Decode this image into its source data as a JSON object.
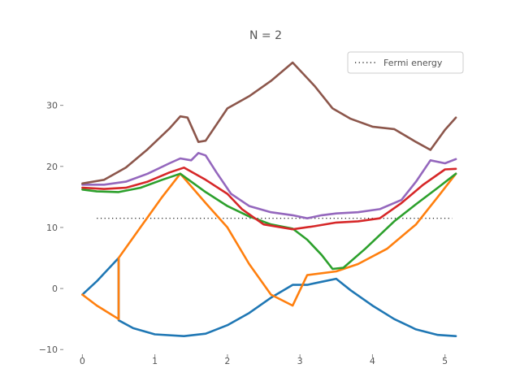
{
  "chart_data": {
    "type": "line",
    "title": "N = 2",
    "xlabel": "",
    "ylabel": "",
    "xlim": [
      -0.15,
      5.25
    ],
    "ylim": [
      -10.5,
      39
    ],
    "xticks": [
      0,
      1,
      2,
      3,
      4,
      5
    ],
    "yticks": [
      -10,
      0,
      10,
      20,
      30
    ],
    "ytick_labels": [
      "−10",
      "0",
      "10",
      "20",
      "30"
    ],
    "grid": false,
    "legend": {
      "position": "top-right",
      "entries": [
        "Fermi energy"
      ]
    },
    "fermi_energy": 11.5,
    "fermi_x_range": [
      0.2,
      5.1
    ],
    "series": [
      {
        "color": "#1f77b4",
        "points": [
          [
            0,
            -1
          ],
          [
            0.2,
            1.2
          ],
          [
            0.5,
            5
          ],
          [
            0.5,
            -5.2
          ],
          [
            0.7,
            -6.5
          ],
          [
            1,
            -7.5
          ],
          [
            1.4,
            -7.8
          ],
          [
            1.7,
            -7.4
          ],
          [
            2,
            -6
          ],
          [
            2.3,
            -4
          ],
          [
            2.6,
            -1.5
          ],
          [
            2.9,
            0.6
          ],
          [
            3.1,
            0.6
          ],
          [
            3.3,
            1.1
          ],
          [
            3.5,
            1.6
          ],
          [
            3.7,
            -0.3
          ],
          [
            4,
            -2.8
          ],
          [
            4.3,
            -5
          ],
          [
            4.6,
            -6.7
          ],
          [
            4.9,
            -7.6
          ],
          [
            5.15,
            -7.8
          ]
        ]
      },
      {
        "color": "#ff7f0e",
        "points": [
          [
            0,
            -1
          ],
          [
            0.2,
            -2.8
          ],
          [
            0.5,
            -5
          ],
          [
            0.5,
            5
          ],
          [
            0.8,
            10
          ],
          [
            1.1,
            15
          ],
          [
            1.35,
            18.8
          ],
          [
            1.7,
            14
          ],
          [
            2,
            10
          ],
          [
            2.3,
            4
          ],
          [
            2.6,
            -1
          ],
          [
            2.9,
            -2.8
          ],
          [
            3.1,
            2.2
          ],
          [
            3.5,
            2.8
          ],
          [
            3.8,
            4
          ],
          [
            4.2,
            6.5
          ],
          [
            4.6,
            10.5
          ],
          [
            4.9,
            15
          ],
          [
            5.15,
            18.8
          ]
        ]
      },
      {
        "color": "#2ca02c",
        "points": [
          [
            0,
            16.2
          ],
          [
            0.2,
            15.9
          ],
          [
            0.5,
            15.8
          ],
          [
            0.8,
            16.5
          ],
          [
            1.1,
            17.8
          ],
          [
            1.35,
            18.8
          ],
          [
            1.7,
            15.8
          ],
          [
            2,
            13.5
          ],
          [
            2.3,
            11.8
          ],
          [
            2.6,
            10.5
          ],
          [
            2.9,
            9.8
          ],
          [
            3.1,
            8
          ],
          [
            3.3,
            5.5
          ],
          [
            3.45,
            3.2
          ],
          [
            3.6,
            3.4
          ],
          [
            3.9,
            6.5
          ],
          [
            4.3,
            11
          ],
          [
            4.6,
            13.8
          ],
          [
            4.9,
            16.5
          ],
          [
            5.15,
            18.8
          ]
        ]
      },
      {
        "color": "#d62728",
        "points": [
          [
            0,
            16.5
          ],
          [
            0.3,
            16.3
          ],
          [
            0.6,
            16.5
          ],
          [
            0.9,
            17.5
          ],
          [
            1.2,
            19
          ],
          [
            1.4,
            19.8
          ],
          [
            1.7,
            17.8
          ],
          [
            2,
            15.5
          ],
          [
            2.2,
            13
          ],
          [
            2.5,
            10.5
          ],
          [
            2.9,
            9.7
          ],
          [
            3.2,
            10.2
          ],
          [
            3.5,
            10.8
          ],
          [
            3.8,
            11
          ],
          [
            4.1,
            11.5
          ],
          [
            4.4,
            14
          ],
          [
            4.7,
            17
          ],
          [
            5,
            19.5
          ],
          [
            5.15,
            19.6
          ]
        ]
      },
      {
        "color": "#9467bd",
        "points": [
          [
            0,
            17
          ],
          [
            0.3,
            17
          ],
          [
            0.6,
            17.5
          ],
          [
            0.9,
            18.8
          ],
          [
            1.2,
            20.5
          ],
          [
            1.35,
            21.3
          ],
          [
            1.5,
            21
          ],
          [
            1.6,
            22.2
          ],
          [
            1.7,
            21.8
          ],
          [
            1.85,
            19
          ],
          [
            2.05,
            15.5
          ],
          [
            2.3,
            13.5
          ],
          [
            2.6,
            12.5
          ],
          [
            2.9,
            12
          ],
          [
            3.1,
            11.5
          ],
          [
            3.3,
            12
          ],
          [
            3.5,
            12.3
          ],
          [
            3.8,
            12.5
          ],
          [
            4.1,
            13
          ],
          [
            4.4,
            14.5
          ],
          [
            4.6,
            17.5
          ],
          [
            4.8,
            21
          ],
          [
            5,
            20.5
          ],
          [
            5.15,
            21.2
          ]
        ]
      },
      {
        "color": "#8c564b",
        "points": [
          [
            0,
            17.2
          ],
          [
            0.3,
            17.8
          ],
          [
            0.6,
            19.8
          ],
          [
            0.9,
            22.8
          ],
          [
            1.2,
            26.2
          ],
          [
            1.35,
            28.2
          ],
          [
            1.45,
            28
          ],
          [
            1.6,
            24
          ],
          [
            1.7,
            24.2
          ],
          [
            2,
            29.5
          ],
          [
            2.3,
            31.5
          ],
          [
            2.6,
            34
          ],
          [
            2.9,
            37
          ],
          [
            3.2,
            33.2
          ],
          [
            3.45,
            29.5
          ],
          [
            3.7,
            27.8
          ],
          [
            4,
            26.5
          ],
          [
            4.3,
            26.1
          ],
          [
            4.6,
            24
          ],
          [
            4.8,
            22.7
          ],
          [
            5,
            26
          ],
          [
            5.15,
            28
          ]
        ]
      }
    ]
  }
}
